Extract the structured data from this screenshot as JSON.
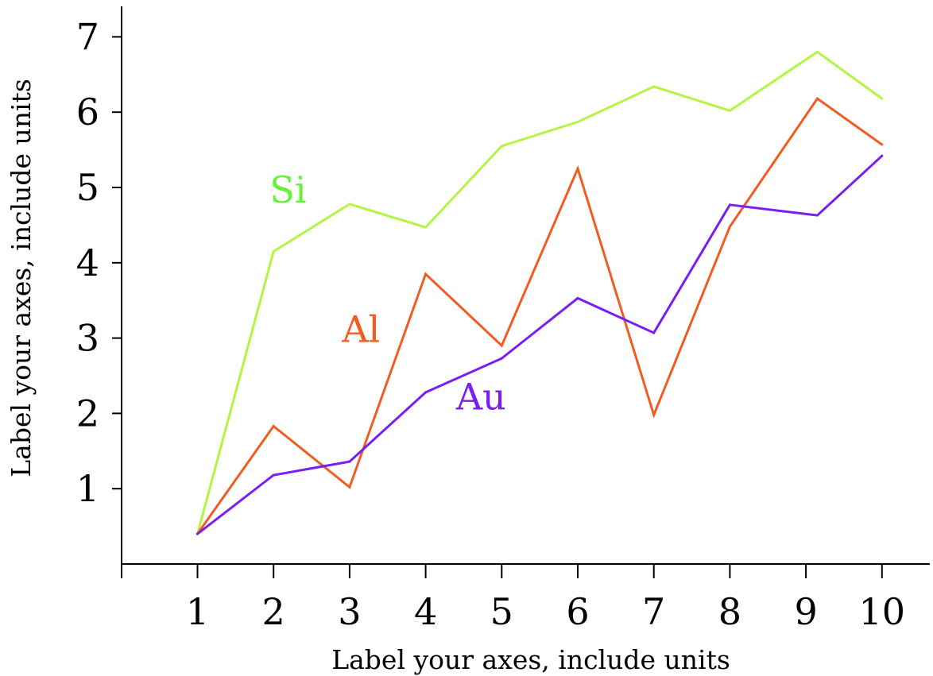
{
  "chart_data": {
    "type": "line",
    "title": "",
    "xlabel": "Label your axes, include units",
    "ylabel": "Label your axes, include units",
    "xlim": [
      0,
      10.6
    ],
    "ylim": [
      0,
      7.4
    ],
    "x_ticks": [
      1,
      2,
      3,
      4,
      5,
      6,
      7,
      8,
      9,
      10
    ],
    "y_ticks": [
      1,
      2,
      3,
      4,
      5,
      6,
      7
    ],
    "grid": false,
    "legend": "inline labels",
    "series": [
      {
        "name": "Si",
        "color": "#b3f542",
        "label_color": "#66f23a",
        "label_at": [
          1.95,
          4.8
        ],
        "x": [
          1,
          2,
          3,
          4,
          5,
          6,
          7,
          8,
          9.15,
          10
        ],
        "y": [
          0.4,
          4.15,
          4.78,
          4.47,
          5.55,
          5.87,
          6.34,
          6.02,
          6.8,
          6.18
        ]
      },
      {
        "name": "Al",
        "color": "#f25c22",
        "label_color": "#f25c22",
        "label_at": [
          2.9,
          2.95
        ],
        "x": [
          1,
          2,
          3,
          4,
          5,
          6,
          7,
          8,
          9.15,
          10
        ],
        "y": [
          0.4,
          1.83,
          1.02,
          3.85,
          2.9,
          5.25,
          1.98,
          4.48,
          6.18,
          5.57
        ]
      },
      {
        "name": "Au",
        "color": "#7a1cf5",
        "label_color": "#7a1cf5",
        "label_at": [
          4.4,
          2.05
        ],
        "x": [
          1,
          2,
          3,
          4,
          5,
          6,
          7,
          8,
          9.15,
          10
        ],
        "y": [
          0.4,
          1.18,
          1.36,
          2.28,
          2.73,
          3.53,
          3.07,
          4.77,
          4.63,
          5.42
        ]
      }
    ]
  }
}
